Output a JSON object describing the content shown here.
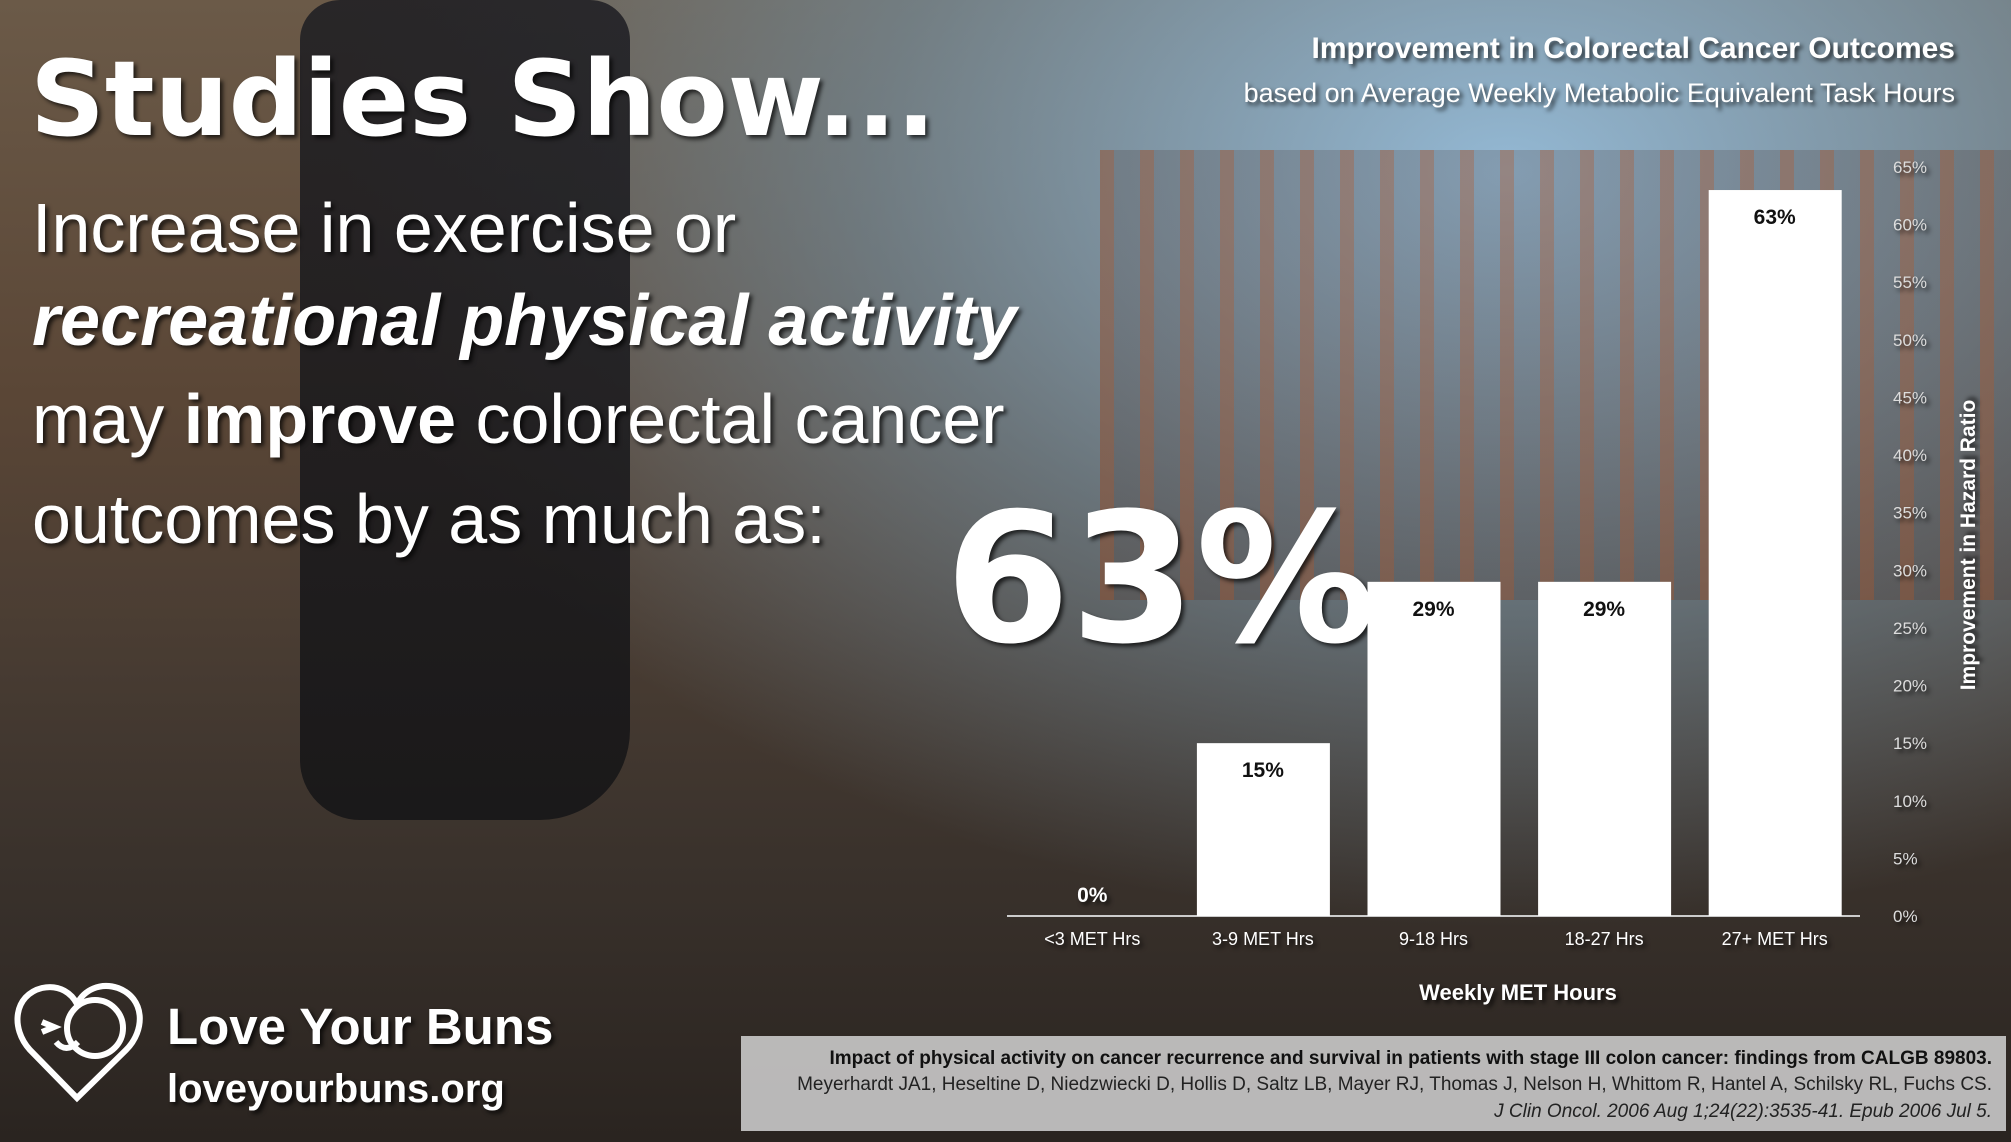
{
  "headline": "Studies Show...",
  "body": {
    "line1": "Increase in exercise or",
    "line2": "recreational physical activity",
    "line3_start": "may",
    "line3_bold": "improve",
    "line3_end": "colorectal cancer",
    "line4": "outcomes by as much as:",
    "highlight": "63%"
  },
  "chart_data": {
    "type": "bar",
    "title": "Improvement in Colorectal Cancer Outcomes",
    "subtitle": "based on Average Weekly Metabolic Equivalent Task Hours",
    "categories": [
      "<3 MET Hrs",
      "3-9 MET Hrs",
      "9-18 Hrs",
      "18-27 Hrs",
      "27+ MET Hrs"
    ],
    "values": [
      0,
      15,
      29,
      29,
      63
    ],
    "value_labels": [
      "0%",
      "15%",
      "29%",
      "29%",
      "63%"
    ],
    "color": "#ffffff",
    "ylim": [
      0,
      65
    ],
    "yticks": [
      {
        "value": 0,
        "label": "0%"
      },
      {
        "value": 5,
        "label": "5%"
      },
      {
        "value": 10,
        "label": "10%"
      },
      {
        "value": 15,
        "label": "15%"
      },
      {
        "value": 20,
        "label": "20%"
      },
      {
        "value": 25,
        "label": "25%"
      },
      {
        "value": 30,
        "label": "30%"
      },
      {
        "value": 35,
        "label": "35%"
      },
      {
        "value": 40,
        "label": "40%"
      },
      {
        "value": 45,
        "label": "45%"
      },
      {
        "value": 50,
        "label": "50%"
      },
      {
        "value": 55,
        "label": "55%"
      },
      {
        "value": 60,
        "label": "60%"
      },
      {
        "value": 65,
        "label": "65%"
      }
    ],
    "ylabel": "Improvement in Hazard Ratio",
    "xlabel": "Weekly MET Hours",
    "grid": false
  },
  "brand": {
    "name": "Love Your Buns",
    "url": "loveyourbuns.org"
  },
  "citation": {
    "title": "Impact of physical activity on cancer recurrence and survival in patients with stage III colon cancer: findings from CALGB 89803.",
    "authors": "Meyerhardt JA1, Heseltine D, Niedzwiecki D, Hollis D, Saltz LB, Mayer RJ, Thomas J, Nelson H, Whittom R, Hantel A, Schilsky RL, Fuchs CS.",
    "journal": "J Clin Oncol. 2006 Aug 1;24(22):3535-41. Epub 2006 Jul 5."
  }
}
